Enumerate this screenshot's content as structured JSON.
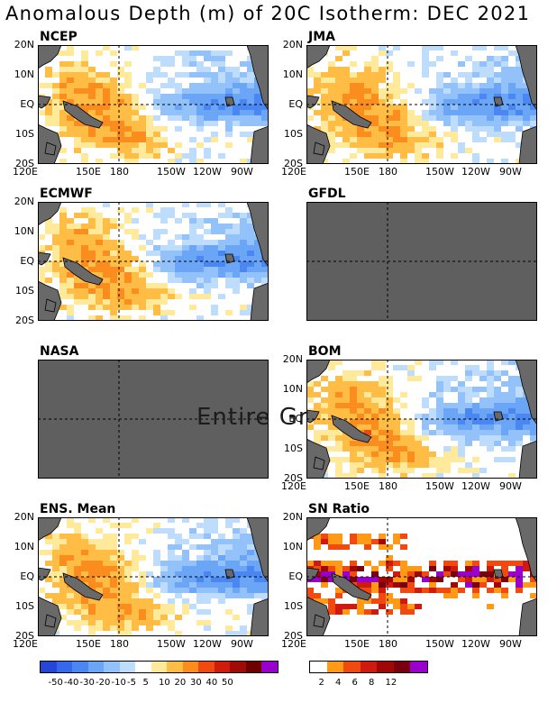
{
  "title": "Anomalous Depth (m) of 20C Isotherm: DEC 2021",
  "overlay_text": "Entire Gr",
  "lat_labels": [
    "20N",
    "10N",
    "EQ",
    "10S",
    "20S"
  ],
  "lon_labels": [
    "120E",
    "150E",
    "180",
    "150W",
    "120W",
    "90W"
  ],
  "panels": [
    {
      "id": "ncep",
      "title": "NCEP",
      "status": "data",
      "show_lat": true,
      "show_lon": true
    },
    {
      "id": "jma",
      "title": "JMA",
      "status": "data",
      "show_lat": true,
      "show_lon": true
    },
    {
      "id": "ecmwf",
      "title": "ECMWF",
      "status": "data",
      "show_lat": true,
      "show_lon": false
    },
    {
      "id": "gfdl",
      "title": "GFDL",
      "status": "missing",
      "show_lat": false,
      "show_lon": false
    },
    {
      "id": "nasa",
      "title": "NASA",
      "status": "missing",
      "show_lat": false,
      "show_lon": false
    },
    {
      "id": "bom",
      "title": "BOM",
      "status": "data",
      "show_lat": true,
      "show_lon": true
    },
    {
      "id": "ens",
      "title": "ENS. Mean",
      "status": "data",
      "show_lat": true,
      "show_lon": true
    },
    {
      "id": "sn",
      "title": "SN Ratio",
      "status": "snr",
      "show_lat": true,
      "show_lon": true
    }
  ],
  "colors": {
    "missing": "#5f5f5f",
    "land": "#696969",
    "anomaly_scale": [
      "#2646d8",
      "#3568ea",
      "#4a87f2",
      "#6aa5f6",
      "#93c2fa",
      "#bedcfc",
      "#ffffff",
      "#ffe99a",
      "#ffbd45",
      "#fb8c1e",
      "#ef4a12",
      "#ce1d0d",
      "#a00a09",
      "#6f0000",
      "#9a00cc"
    ],
    "snr_scale": [
      "#ffffff",
      "#ff9a18",
      "#f04a10",
      "#cf1a10",
      "#a00808",
      "#7a0010",
      "#9a00cc"
    ]
  },
  "chart_data": {
    "type": "heatmap",
    "title": "Anomalous Depth (m) of 20C Isotherm: DEC 2021",
    "x_range": [
      "120E",
      "80W"
    ],
    "y_range": [
      "20S",
      "20N"
    ],
    "x_ticks": [
      "120E",
      "150E",
      "180",
      "150W",
      "120W",
      "90W"
    ],
    "y_ticks": [
      "20N",
      "10N",
      "EQ",
      "10S",
      "20S"
    ],
    "reference_lines": [
      "EQ",
      "180"
    ],
    "pattern": "positive anomalies (deeper thermocline, +10 to +40 m) in the western and central Pacific, strongest near 150E-180 at 5S-15S; negative anomalies (-10 to -40 m) along the equator in the central and eastern Pacific east of about 160W",
    "anomaly_colorbar": {
      "unit": "m",
      "tick_labels": [
        "-50",
        "-40",
        "-30",
        "-20",
        "-10",
        "-5",
        "5",
        "10",
        "20",
        "30",
        "40",
        "50"
      ]
    },
    "snr_colorbar": {
      "tick_labels": [
        "2",
        "4",
        "6",
        "8",
        "12"
      ]
    }
  }
}
